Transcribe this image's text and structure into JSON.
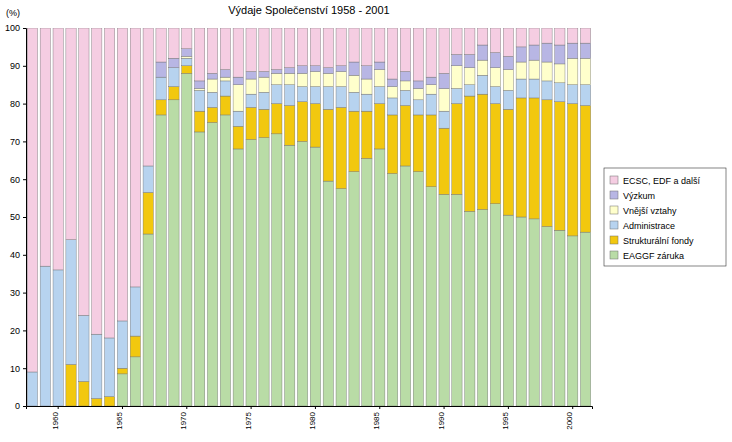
{
  "chart_data": {
    "type": "bar",
    "title": "Výdaje Společenství 1958 - 2001",
    "y_label": "(%)",
    "stacked": true,
    "legend": "right",
    "categories": [
      null,
      null,
      "1960",
      null,
      null,
      null,
      null,
      "1965",
      null,
      null,
      null,
      null,
      "1970",
      null,
      null,
      null,
      null,
      "1975",
      null,
      null,
      null,
      null,
      "1980",
      null,
      null,
      null,
      null,
      "1985",
      null,
      null,
      null,
      null,
      "1990",
      null,
      null,
      null,
      null,
      "1995",
      null,
      null,
      null,
      null,
      "2000",
      null
    ],
    "ylim": [
      0,
      100
    ],
    "yticks": [
      0,
      10,
      20,
      30,
      40,
      50,
      60,
      70,
      80,
      90,
      100
    ],
    "series": [
      {
        "name": "EAGGF záruka",
        "color": "#b9dca6",
        "values": [
          0,
          0,
          0,
          0,
          0,
          0,
          0,
          8.5,
          13,
          45.5,
          77,
          81,
          88,
          72.5,
          75,
          77,
          68,
          70.5,
          71,
          72,
          69,
          70,
          68.5,
          59.5,
          57.5,
          62,
          65.5,
          68,
          61.5,
          63.5,
          62,
          58,
          56,
          56,
          51.5,
          52,
          53.5,
          50.5,
          50,
          49.5,
          47.5,
          46.5,
          45,
          46
        ]
      },
      {
        "name": "Strukturální fondy",
        "color": "#f2c80f",
        "values": [
          0,
          0,
          0,
          11,
          6.5,
          2,
          2.5,
          1.5,
          5.5,
          11,
          4,
          3.5,
          2,
          5.5,
          4,
          5,
          6,
          8.5,
          7.5,
          8,
          10.5,
          10.5,
          11.5,
          19,
          21.5,
          16,
          12.5,
          12,
          15.5,
          16,
          15,
          19,
          17.5,
          24,
          30.5,
          30.5,
          26.5,
          28,
          31.5,
          32,
          33.5,
          34,
          35,
          33.5
        ]
      },
      {
        "name": "Administrace",
        "color": "#b7d3ef",
        "values": [
          9,
          37,
          36,
          33,
          17.5,
          17,
          15.5,
          12.5,
          13,
          7,
          6,
          5,
          2,
          5.5,
          4,
          4,
          4,
          3.5,
          4.5,
          5,
          5.5,
          4,
          4.5,
          6,
          5.5,
          5,
          4.5,
          4.5,
          4.5,
          4,
          4,
          5.5,
          4.5,
          4,
          3,
          5,
          4.5,
          5,
          5,
          5,
          5,
          5,
          5,
          5.5
        ]
      },
      {
        "name": "Vnější vztahy",
        "color": "#ffffcc",
        "values": [
          0,
          0,
          0,
          0,
          0,
          0,
          0,
          0,
          0,
          0,
          0,
          0,
          0.5,
          0.5,
          3.5,
          1,
          7,
          4,
          4,
          3,
          3,
          3.5,
          4,
          3.5,
          4,
          4.5,
          4,
          4.5,
          3,
          2.5,
          3,
          2.5,
          6,
          6,
          4.5,
          4,
          5,
          5.5,
          4.5,
          5,
          5,
          5,
          7,
          7
        ]
      },
      {
        "name": "Výzkum",
        "color": "#b8b6e4",
        "values": [
          0,
          0,
          0,
          0,
          0,
          0,
          0,
          0,
          0,
          0,
          4,
          2.5,
          2,
          2,
          1.5,
          2,
          2,
          2,
          1.5,
          1,
          1.5,
          2,
          1.5,
          1.5,
          1.5,
          3.5,
          3.5,
          2,
          2,
          2.5,
          2,
          2,
          4,
          3,
          3.5,
          4,
          4,
          3.5,
          4,
          4,
          5,
          5,
          4,
          4
        ]
      },
      {
        "name": "ECSC, EDF a další",
        "color": "#f5cde2",
        "values": [
          91,
          63,
          64,
          56,
          76,
          81,
          82,
          77.5,
          68.5,
          36.5,
          9,
          8,
          5.5,
          14,
          12,
          11,
          13,
          11.5,
          11.5,
          11,
          10.5,
          10,
          10,
          10.5,
          10,
          9,
          10,
          9,
          13.5,
          11.5,
          14,
          13,
          12,
          7,
          7,
          4.5,
          6.5,
          7.5,
          5,
          4.5,
          4,
          4.5,
          4,
          4
        ]
      }
    ]
  }
}
